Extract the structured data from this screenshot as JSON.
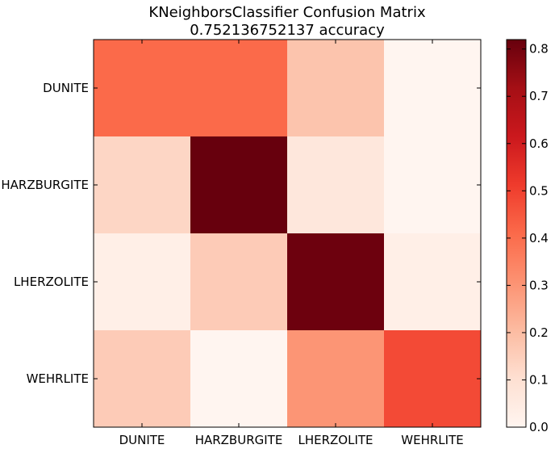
{
  "chart_data": {
    "type": "heatmap",
    "title_lines": [
      "KNeighborsClassifier Confusion Matrix",
      "0.752136752137 accuracy"
    ],
    "x_categories": [
      "DUNITE",
      "HARZBURGITE",
      "LHERZOLITE",
      "WEHRLITE"
    ],
    "y_categories": [
      "DUNITE",
      "HARZBURGITE",
      "LHERZOLITE",
      "WEHRLITE"
    ],
    "matrix": [
      [
        0.41,
        0.41,
        0.18,
        0.0
      ],
      [
        0.13,
        0.82,
        0.07,
        0.0
      ],
      [
        0.03,
        0.16,
        0.81,
        0.03
      ],
      [
        0.16,
        0.0,
        0.3,
        0.48
      ]
    ],
    "colormap": "Reds",
    "color_range": [
      0.0,
      0.82
    ],
    "colorbar_ticks": [
      "0.0",
      "0.1",
      "0.2",
      "0.3",
      "0.4",
      "0.5",
      "0.6",
      "0.7",
      "0.8"
    ],
    "colorbar_tick_values": [
      0.0,
      0.1,
      0.2,
      0.3,
      0.4,
      0.5,
      0.6,
      0.7,
      0.8
    ]
  }
}
